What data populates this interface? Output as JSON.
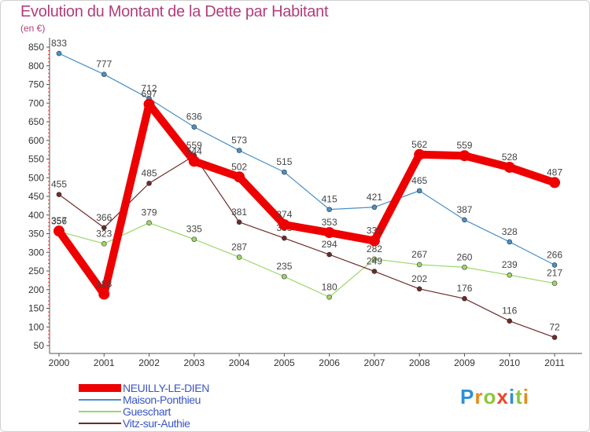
{
  "header": {
    "title": "Evolution du Montant de la Dette par Habitant",
    "subtitle": "(en €)"
  },
  "logo": {
    "letters": [
      {
        "char": "P",
        "color": "#2f8fd6"
      },
      {
        "char": "r",
        "color": "#e8891a"
      },
      {
        "char": "o",
        "color": "#8cc63e"
      },
      {
        "char": "x",
        "color": "#e8482b"
      },
      {
        "char": "i",
        "color": "#2f8fd6"
      },
      {
        "char": "t",
        "color": "#8cc63e"
      },
      {
        "char": "i",
        "color": "#e8891a"
      }
    ]
  },
  "chart_data": {
    "type": "line",
    "title": "Evolution du Montant de la Dette par Habitant",
    "subtitle": "(en €)",
    "x": [
      "2000",
      "2001",
      "2002",
      "2003",
      "2004",
      "2005",
      "2006",
      "2007",
      "2008",
      "2009",
      "2010",
      "2011"
    ],
    "ylim": [
      50,
      850
    ],
    "yticks": [
      50,
      100,
      150,
      200,
      250,
      300,
      350,
      400,
      450,
      500,
      550,
      600,
      650,
      700,
      750,
      800,
      850
    ],
    "grid": false,
    "legend": "bottom-left",
    "series": [
      {
        "name": "NEUILLY-LE-DIEN",
        "color": "#ee0000",
        "highlight": true,
        "values": [
          357,
          188,
          697,
          544,
          502,
          374,
          353,
          331,
          562,
          559,
          528,
          487
        ]
      },
      {
        "name": "Maison-Ponthieu",
        "color": "#4a90c8",
        "highlight": false,
        "values": [
          833,
          777,
          712,
          636,
          573,
          515,
          415,
          421,
          465,
          387,
          328,
          266
        ]
      },
      {
        "name": "Gueschart",
        "color": "#9ed66a",
        "highlight": false,
        "values": [
          356,
          323,
          379,
          335,
          287,
          235,
          180,
          282,
          267,
          260,
          239,
          217
        ]
      },
      {
        "name": "Vitz-sur-Authie",
        "color": "#6e2a2a",
        "highlight": false,
        "values": [
          455,
          366,
          485,
          559,
          381,
          338,
          294,
          249,
          202,
          176,
          116,
          72
        ]
      }
    ]
  }
}
